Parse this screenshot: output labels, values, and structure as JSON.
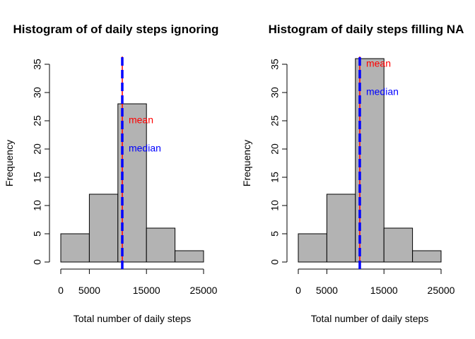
{
  "chart_data": [
    {
      "type": "bar",
      "title": "Histogram of of daily steps ignoring",
      "xlabel": "Total number of daily steps",
      "ylabel": "Frequency",
      "bins": [
        [
          0,
          5000
        ],
        [
          5000,
          10000
        ],
        [
          10000,
          15000
        ],
        [
          15000,
          20000
        ],
        [
          20000,
          25000
        ]
      ],
      "values": [
        5,
        12,
        28,
        6,
        2
      ],
      "xticks": [
        0,
        5000,
        15000,
        25000
      ],
      "yticks": [
        0,
        5,
        10,
        15,
        20,
        25,
        30,
        35
      ],
      "xlim": [
        0,
        25000
      ],
      "ylim": [
        0,
        35
      ],
      "bar_color": "#b3b3b3",
      "mean": 10766,
      "median": 10765,
      "mean_color": "#ff0000",
      "median_color": "#0000ff",
      "mean_label": "mean",
      "median_label": "median",
      "mean_label_y": 25,
      "median_label_y": 20
    },
    {
      "type": "bar",
      "title": "Histogram of daily steps filling NA",
      "xlabel": "Total number of daily steps",
      "ylabel": "Frequency",
      "bins": [
        [
          0,
          5000
        ],
        [
          5000,
          10000
        ],
        [
          10000,
          15000
        ],
        [
          15000,
          20000
        ],
        [
          20000,
          25000
        ]
      ],
      "values": [
        5,
        12,
        36,
        6,
        2
      ],
      "xticks": [
        0,
        5000,
        15000,
        25000
      ],
      "yticks": [
        0,
        5,
        10,
        15,
        20,
        25,
        30,
        35
      ],
      "xlim": [
        0,
        25000
      ],
      "ylim": [
        0,
        35
      ],
      "bar_color": "#b3b3b3",
      "mean": 10766,
      "median": 10766,
      "mean_color": "#ff0000",
      "median_color": "#0000ff",
      "mean_label": "mean",
      "median_label": "median",
      "mean_label_y": 35,
      "median_label_y": 30
    }
  ]
}
